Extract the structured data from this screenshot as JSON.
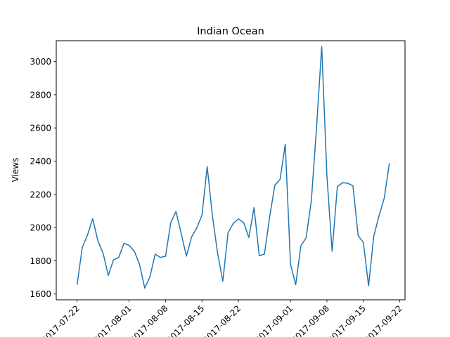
{
  "chart_data": {
    "type": "line",
    "title": "Indian Ocean",
    "xlabel": "",
    "ylabel": "Views",
    "x_ticks": [
      "2017-07-22",
      "2017-08-01",
      "2017-08-08",
      "2017-08-15",
      "2017-08-22",
      "2017-09-01",
      "2017-09-08",
      "2017-09-15",
      "2017-09-22"
    ],
    "y_ticks": [
      1600,
      1800,
      2000,
      2200,
      2400,
      2600,
      2800,
      3000
    ],
    "xlim": [
      "2017-07-18",
      "2017-09-23"
    ],
    "ylim": [
      1565,
      3125
    ],
    "grid": false,
    "line_color": "#1f77b4",
    "series": [
      {
        "x": [
          "2017-07-22",
          "2017-07-23",
          "2017-07-24",
          "2017-07-25",
          "2017-07-26",
          "2017-07-27",
          "2017-07-28",
          "2017-07-29",
          "2017-07-30",
          "2017-07-31",
          "2017-08-01",
          "2017-08-02",
          "2017-08-03",
          "2017-08-04",
          "2017-08-05",
          "2017-08-06",
          "2017-08-07",
          "2017-08-08",
          "2017-08-09",
          "2017-08-10",
          "2017-08-11",
          "2017-08-12",
          "2017-08-13",
          "2017-08-14",
          "2017-08-15",
          "2017-08-16",
          "2017-08-17",
          "2017-08-18",
          "2017-08-19",
          "2017-08-20",
          "2017-08-21",
          "2017-08-22",
          "2017-08-23",
          "2017-08-24",
          "2017-08-25",
          "2017-08-26",
          "2017-08-27",
          "2017-08-28",
          "2017-08-29",
          "2017-08-30",
          "2017-08-31",
          "2017-09-01",
          "2017-09-02",
          "2017-09-03",
          "2017-09-04",
          "2017-09-05",
          "2017-09-06",
          "2017-09-07",
          "2017-09-08",
          "2017-09-09",
          "2017-09-10",
          "2017-09-11",
          "2017-09-12",
          "2017-09-13",
          "2017-09-14",
          "2017-09-15",
          "2017-09-16",
          "2017-09-17",
          "2017-09-18",
          "2017-09-19"
        ],
        "values": [
          1655,
          1880,
          1955,
          2053,
          1920,
          1845,
          1712,
          1805,
          1820,
          1905,
          1893,
          1858,
          1778,
          1635,
          1703,
          1840,
          1820,
          1827,
          2030,
          2097,
          1965,
          1828,
          1943,
          1998,
          2075,
          2367,
          2070,
          1845,
          1677,
          1968,
          2025,
          2052,
          2030,
          1940,
          2120,
          1830,
          1840,
          2065,
          2255,
          2290,
          2502,
          1780,
          1656,
          1890,
          1938,
          2160,
          2600,
          3090,
          2310,
          1857,
          2246,
          2270,
          2267,
          2251,
          1952,
          1910,
          1650,
          1948,
          2070,
          2175
        ]
      }
    ],
    "extra_point": {
      "x": "2017-09-20",
      "value": 2387
    }
  }
}
